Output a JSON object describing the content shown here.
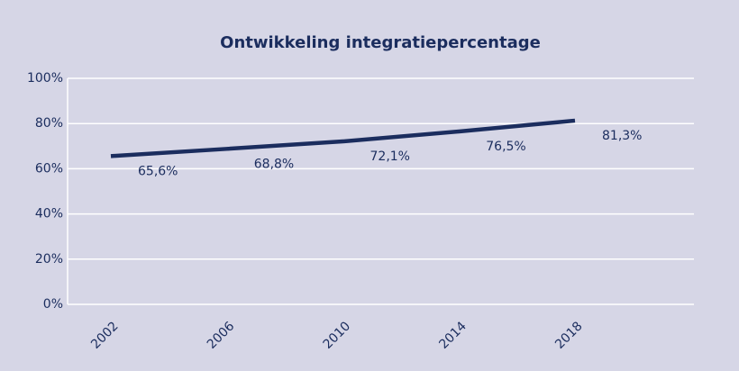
{
  "chart_data": {
    "type": "line",
    "title": "Ontwikkeling integratiepercentage",
    "categories": [
      "2002",
      "2006",
      "2010",
      "2014",
      "2018"
    ],
    "series": [
      {
        "name": "integratiepercentage",
        "color": "#1b2d5e",
        "values": [
          65.6,
          68.8,
          72.1,
          76.5,
          81.3
        ],
        "value_labels": [
          "65,6%",
          "68,8%",
          "72,1%",
          "76,5%",
          "81,3%"
        ]
      }
    ],
    "ylim": [
      0,
      100
    ],
    "yticks": [
      {
        "value": 0,
        "label": "0%"
      },
      {
        "value": 20,
        "label": "20%"
      },
      {
        "value": 40,
        "label": "40%"
      },
      {
        "value": 60,
        "label": "60%"
      },
      {
        "value": 80,
        "label": "80%"
      },
      {
        "value": 100,
        "label": "100%"
      }
    ],
    "grid": true
  }
}
